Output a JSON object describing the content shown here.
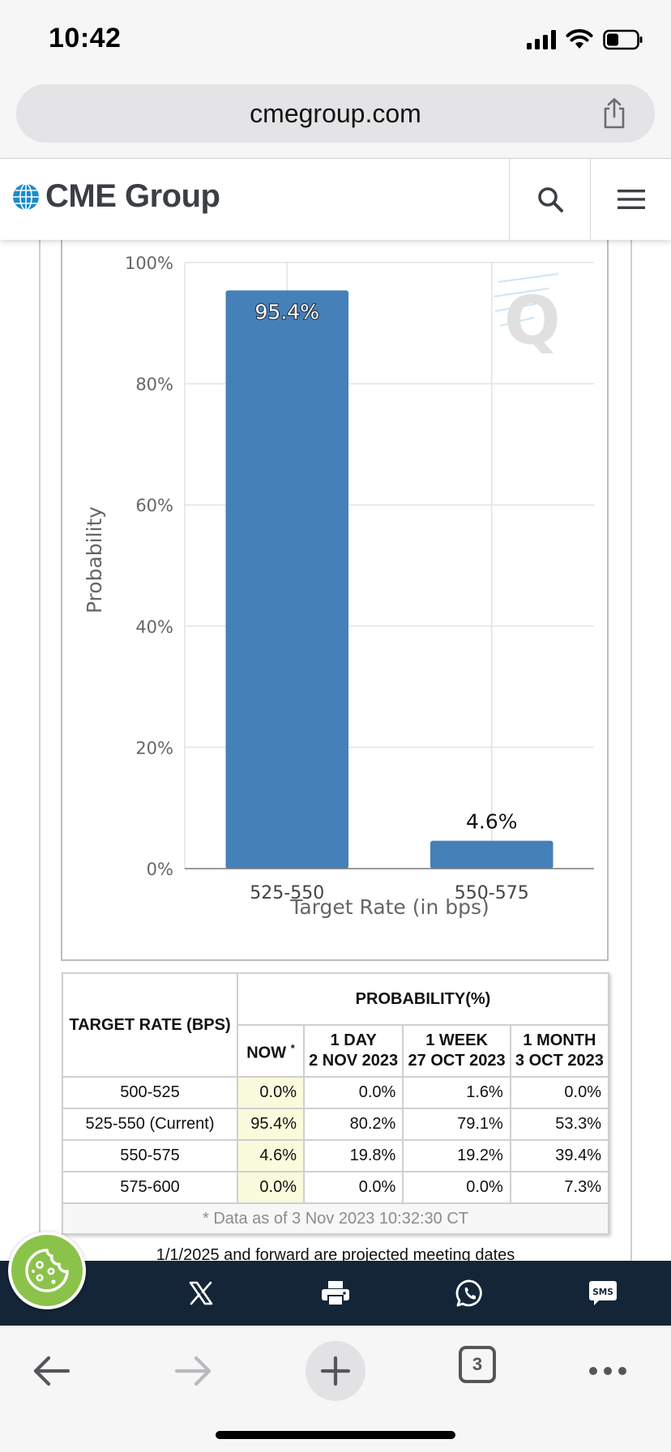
{
  "status_bar": {
    "time": "10:42"
  },
  "browser": {
    "url": "cmegroup.com",
    "tab_count": "3"
  },
  "site": {
    "logo_text": "CME Group"
  },
  "chart_data": {
    "type": "bar",
    "categories": [
      "525-550",
      "550-575"
    ],
    "values": [
      95.4,
      4.6
    ],
    "data_labels": [
      "95.4%",
      "4.6%"
    ],
    "xlabel": "Target Rate (in bps)",
    "ylabel": "Probability",
    "ylim": [
      0,
      100
    ],
    "yticks": [
      "0%",
      "20%",
      "40%",
      "60%",
      "80%",
      "100%"
    ],
    "grid": true,
    "bar_color": "#4580b9"
  },
  "table": {
    "col_target": "TARGET RATE (BPS)",
    "col_probability": "PROBABILITY(%)",
    "col_now": "NOW",
    "now_marker": "*",
    "periods": [
      {
        "label": "1 DAY",
        "date": "2 NOV 2023"
      },
      {
        "label": "1 WEEK",
        "date": "27 OCT 2023"
      },
      {
        "label": "1 MONTH",
        "date": "3 OCT 2023"
      }
    ],
    "rows": [
      {
        "target": "500-525",
        "now": "0.0%",
        "day": "0.0%",
        "week": "1.6%",
        "month": "0.0%"
      },
      {
        "target": "525-550 (Current)",
        "now": "95.4%",
        "day": "80.2%",
        "week": "79.1%",
        "month": "53.3%"
      },
      {
        "target": "550-575",
        "now": "4.6%",
        "day": "19.8%",
        "week": "19.2%",
        "month": "39.4%"
      },
      {
        "target": "575-600",
        "now": "0.0%",
        "day": "0.0%",
        "week": "0.0%",
        "month": "7.3%"
      }
    ],
    "note": "* Data as of 3 Nov 2023 10:32:30 CT"
  },
  "footnote": "1/1/2025 and forward are projected meeting dates",
  "colors": {
    "share_bar": "#142537",
    "cookie": "#8bc34a",
    "now_column": "#fafadc"
  }
}
